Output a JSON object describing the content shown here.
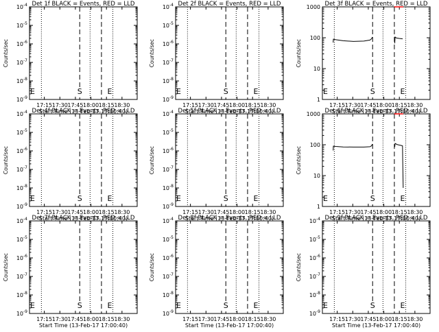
{
  "x_ticks": [
    "17:15",
    "17:30",
    "17:45",
    "18:00",
    "18:15",
    "18:30"
  ],
  "x_tick_minutes": [
    14.33,
    29.33,
    44.33,
    59.33,
    74.33,
    89.33
  ],
  "x_range_minutes": [
    0,
    104
  ],
  "xlabel": "Start Time (13-Feb-17 17:00:40)",
  "ylabel": "Counts/sec",
  "start_marker_label": "S",
  "end_marker_label": "E",
  "colors": {
    "events": "#000000",
    "lld": "#ff0000"
  },
  "chart_data": [
    {
      "type": "line",
      "title": "Det 1f BLACK = Events, RED = LLD",
      "y_scale": "log",
      "ylim": [
        1e-09,
        0.0001
      ],
      "y_ticks": [
        {
          "value": 1e-09,
          "label": "10^-9"
        },
        {
          "value": 1e-08,
          "label": "10^-8"
        },
        {
          "value": 1e-07,
          "label": "10^-7"
        },
        {
          "value": 1e-06,
          "label": "10^-6"
        },
        {
          "value": 1e-05,
          "label": "10^-5"
        },
        {
          "value": 0.0001,
          "label": "10^-4"
        }
      ],
      "dotted_lines_minutes": [
        11.5,
        58.5,
        80.5
      ],
      "dashed_lines_minutes": [
        48.5,
        69.5
      ],
      "start_marker_minutes": 48.5,
      "end_marker_minutes": 77.5,
      "series": []
    },
    {
      "type": "line",
      "title": "Det 2f BLACK = Events, RED = LLD",
      "y_scale": "log",
      "ylim": [
        1e-09,
        0.0001
      ],
      "y_ticks": [
        {
          "value": 1e-09,
          "label": "10^-9"
        },
        {
          "value": 1e-08,
          "label": "10^-8"
        },
        {
          "value": 1e-07,
          "label": "10^-7"
        },
        {
          "value": 1e-06,
          "label": "10^-6"
        },
        {
          "value": 1e-05,
          "label": "10^-5"
        },
        {
          "value": 0.0001,
          "label": "10^-4"
        }
      ],
      "dotted_lines_minutes": [
        11.5,
        58.5,
        80.5
      ],
      "dashed_lines_minutes": [
        48.5,
        69.5
      ],
      "start_marker_minutes": 48.5,
      "end_marker_minutes": 77.5,
      "series": []
    },
    {
      "type": "line",
      "title": "Det 3f BLACK = Events, RED = LLD",
      "y_scale": "log",
      "ylim": [
        1,
        1000
      ],
      "y_ticks": [
        {
          "value": 1,
          "label": "1"
        },
        {
          "value": 10,
          "label": "10"
        },
        {
          "value": 100,
          "label": "100"
        },
        {
          "value": 1000,
          "label": "1000"
        }
      ],
      "dotted_lines_minutes": [
        11.5,
        58.5,
        80.5
      ],
      "dashed_lines_minutes": [
        48.5,
        69.5
      ],
      "start_marker_minutes": 48.5,
      "end_marker_minutes": 77.5,
      "series": [
        {
          "color": "black",
          "x": [
            10.4,
            10.6,
            13,
            20,
            30,
            40,
            46,
            47.4,
            48.3
          ],
          "y": [
            70,
            90,
            86,
            80,
            76,
            78,
            84,
            92,
            105
          ]
        },
        {
          "color": "black",
          "x": [
            69.9,
            70.2,
            71.5,
            74,
            77.5
          ],
          "y": [
            66,
            105,
            98,
            95,
            92
          ]
        },
        {
          "color": "red",
          "x": [
            69.4,
            72,
            78
          ],
          "y": [
            1000,
            1000,
            1000
          ]
        }
      ]
    },
    {
      "type": "line",
      "title": "Det 4f BLACK = Events, RED = LLD",
      "y_scale": "log",
      "ylim": [
        1e-09,
        0.0001
      ],
      "y_ticks": [
        {
          "value": 1e-09,
          "label": "10^-9"
        },
        {
          "value": 1e-08,
          "label": "10^-8"
        },
        {
          "value": 1e-07,
          "label": "10^-7"
        },
        {
          "value": 1e-06,
          "label": "10^-6"
        },
        {
          "value": 1e-05,
          "label": "10^-5"
        },
        {
          "value": 0.0001,
          "label": "10^-4"
        }
      ],
      "dotted_lines_minutes": [
        11.5,
        58.5,
        80.5
      ],
      "dashed_lines_minutes": [
        48.5,
        69.5
      ],
      "start_marker_minutes": 48.5,
      "end_marker_minutes": 77.5,
      "series": []
    },
    {
      "type": "line",
      "title": "Det 5f BLACK = Events, RED = LLD",
      "y_scale": "log",
      "ylim": [
        1e-09,
        0.0001
      ],
      "y_ticks": [
        {
          "value": 1e-09,
          "label": "10^-9"
        },
        {
          "value": 1e-08,
          "label": "10^-8"
        },
        {
          "value": 1e-07,
          "label": "10^-7"
        },
        {
          "value": 1e-06,
          "label": "10^-6"
        },
        {
          "value": 1e-05,
          "label": "10^-5"
        },
        {
          "value": 0.0001,
          "label": "10^-4"
        }
      ],
      "dotted_lines_minutes": [
        11.5,
        58.5,
        80.5
      ],
      "dashed_lines_minutes": [
        48.5,
        69.5
      ],
      "start_marker_minutes": 48.5,
      "end_marker_minutes": 77.5,
      "series": []
    },
    {
      "type": "line",
      "title": "Det 6f BLACK = Events, RED = LLD",
      "y_scale": "log",
      "ylim": [
        1,
        1000
      ],
      "y_ticks": [
        {
          "value": 1,
          "label": "1"
        },
        {
          "value": 10,
          "label": "10"
        },
        {
          "value": 100,
          "label": "100"
        },
        {
          "value": 1000,
          "label": "1000"
        }
      ],
      "dotted_lines_minutes": [
        11.5,
        58.5,
        80.5
      ],
      "dashed_lines_minutes": [
        48.5,
        69.5
      ],
      "start_marker_minutes": 48.5,
      "end_marker_minutes": 77.5,
      "series": [
        {
          "color": "black",
          "x": [
            10.4,
            10.6,
            13,
            20,
            30,
            40,
            46,
            47.4,
            48.3
          ],
          "y": [
            65,
            90,
            88,
            85,
            84,
            84,
            86,
            92,
            105
          ]
        },
        {
          "color": "black",
          "x": [
            69.9,
            70.2,
            72,
            74,
            76,
            77.4,
            77.6,
            78
          ],
          "y": [
            85,
            110,
            102,
            98,
            95,
            92,
            30,
            4
          ]
        },
        {
          "color": "red",
          "x": [
            69.4,
            72,
            78
          ],
          "y": [
            1000,
            1000,
            1000
          ]
        }
      ]
    },
    {
      "type": "line",
      "title": "Det 7f BLACK = Events, RED = LLD",
      "y_scale": "log",
      "ylim": [
        1e-09,
        0.0001
      ],
      "y_ticks": [
        {
          "value": 1e-09,
          "label": "10^-9"
        },
        {
          "value": 1e-08,
          "label": "10^-8"
        },
        {
          "value": 1e-07,
          "label": "10^-7"
        },
        {
          "value": 1e-06,
          "label": "10^-6"
        },
        {
          "value": 1e-05,
          "label": "10^-5"
        },
        {
          "value": 0.0001,
          "label": "10^-4"
        }
      ],
      "dotted_lines_minutes": [
        11.5,
        58.5,
        80.5
      ],
      "dashed_lines_minutes": [
        48.5,
        69.5
      ],
      "start_marker_minutes": 48.5,
      "end_marker_minutes": 77.5,
      "series": []
    },
    {
      "type": "line",
      "title": "Det 8f BLACK = Events, RED = LLD",
      "y_scale": "log",
      "ylim": [
        1e-09,
        0.0001
      ],
      "y_ticks": [
        {
          "value": 1e-09,
          "label": "10^-9"
        },
        {
          "value": 1e-08,
          "label": "10^-8"
        },
        {
          "value": 1e-07,
          "label": "10^-7"
        },
        {
          "value": 1e-06,
          "label": "10^-6"
        },
        {
          "value": 1e-05,
          "label": "10^-5"
        },
        {
          "value": 0.0001,
          "label": "10^-4"
        }
      ],
      "dotted_lines_minutes": [
        11.5,
        58.5,
        80.5
      ],
      "dashed_lines_minutes": [
        48.5,
        69.5
      ],
      "start_marker_minutes": 48.5,
      "end_marker_minutes": 77.5,
      "series": []
    },
    {
      "type": "line",
      "title": "Det 9f BLACK = Events, RED = LLD",
      "y_scale": "log",
      "ylim": [
        1e-09,
        0.0001
      ],
      "y_ticks": [
        {
          "value": 1e-09,
          "label": "10^-9"
        },
        {
          "value": 1e-08,
          "label": "10^-8"
        },
        {
          "value": 1e-07,
          "label": "10^-7"
        },
        {
          "value": 1e-06,
          "label": "10^-6"
        },
        {
          "value": 1e-05,
          "label": "10^-5"
        },
        {
          "value": 0.0001,
          "label": "10^-4"
        }
      ],
      "dotted_lines_minutes": [
        11.5,
        58.5,
        80.5
      ],
      "dashed_lines_minutes": [
        48.5,
        69.5
      ],
      "start_marker_minutes": 48.5,
      "end_marker_minutes": 77.5,
      "series": []
    }
  ]
}
